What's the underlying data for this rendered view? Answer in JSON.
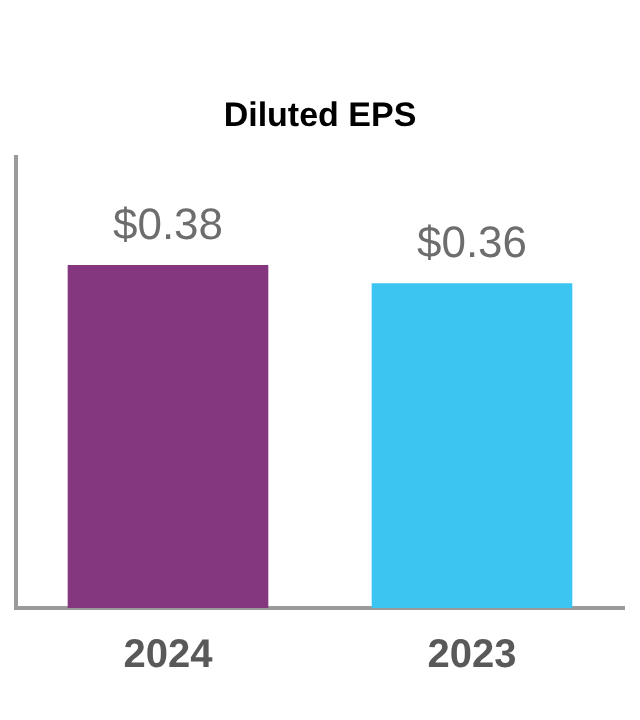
{
  "chart_data": {
    "type": "bar",
    "title": "Diluted EPS",
    "categories": [
      "2024",
      "2023"
    ],
    "values": [
      0.38,
      0.36
    ],
    "colors": [
      "#84367f",
      "#3bc5f0"
    ],
    "value_labels": [
      "$0.38",
      "$0.36"
    ],
    "ylim": [
      0,
      0.5
    ],
    "tick_labels": "x",
    "grid": false,
    "legend": false
  }
}
